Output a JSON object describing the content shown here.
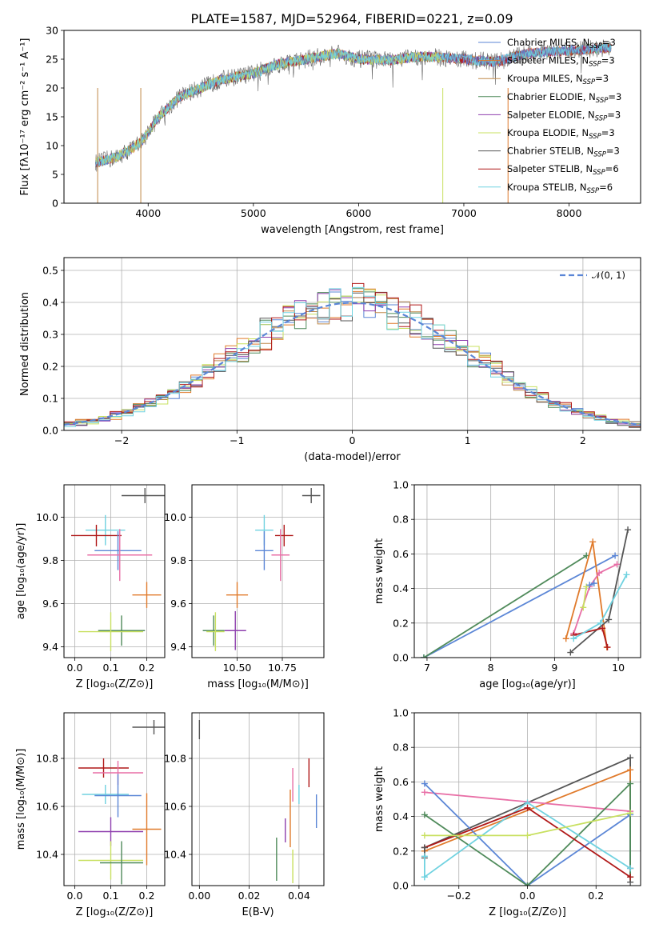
{
  "title": "PLATE=1587, MJD=52964, FIBERID=0221, z=0.09",
  "colors": {
    "chab_miles": "#5b86d6",
    "salp_miles": "#e07a2b",
    "krou_miles": "#c08a4a",
    "chab_elodie": "#4f8a5a",
    "salp_elodie": "#8e3fae",
    "krou_elodie": "#c8e060",
    "chab_stelib": "#555555",
    "salp_stelib": "#b01818",
    "krou_stelib": "#70d2e0",
    "pink": "#e86fa6",
    "normal": "#5b86d6"
  },
  "chart_data": [
    {
      "id": "spectrum",
      "type": "line",
      "xlabel": "wavelength [Angstrom, rest frame]",
      "ylabel": "Flux [fλ10⁻¹⁷ erg cm⁻² s⁻¹ A⁻¹]",
      "xlim": [
        3200,
        8680
      ],
      "ylim": [
        0,
        30
      ],
      "xticks": [
        "4000",
        "5000",
        "6000",
        "7000",
        "8000"
      ],
      "yticks": [
        "0",
        "5",
        "10",
        "15",
        "20",
        "25",
        "30"
      ],
      "legend_position": "top-right",
      "legend": [
        {
          "label": "Chabrier MILES, N",
          "sub": "SSP",
          "suffix": "=3",
          "color_key": "chab_miles"
        },
        {
          "label": "Salpeter MILES, N",
          "sub": "SSP",
          "suffix": "=3",
          "color_key": "salp_miles"
        },
        {
          "label": "Kroupa MILES, N",
          "sub": "SSP",
          "suffix": "=3",
          "color_key": "krou_miles"
        },
        {
          "label": "Chabrier ELODIE, N",
          "sub": "SSP",
          "suffix": "=3",
          "color_key": "chab_elodie"
        },
        {
          "label": "Salpeter ELODIE, N",
          "sub": "SSP",
          "suffix": "=3",
          "color_key": "salp_elodie"
        },
        {
          "label": "Kroupa ELODIE, N",
          "sub": "SSP",
          "suffix": "=3",
          "color_key": "krou_elodie"
        },
        {
          "label": "Chabrier STELIB, N",
          "sub": "SSP",
          "suffix": "=3",
          "color_key": "chab_stelib"
        },
        {
          "label": "Salpeter STELIB, N",
          "sub": "SSP",
          "suffix": "=6",
          "color_key": "salp_stelib"
        },
        {
          "label": "Kroupa STELIB, N",
          "sub": "SSP",
          "suffix": "=6",
          "color_key": "krou_stelib"
        }
      ],
      "data_range_A": [
        3500,
        8400
      ],
      "continuum": [
        [
          3500,
          7
        ],
        [
          3700,
          8
        ],
        [
          3850,
          9.5
        ],
        [
          3950,
          11
        ],
        [
          4100,
          15
        ],
        [
          4300,
          18.5
        ],
        [
          4500,
          20
        ],
        [
          4700,
          21.5
        ],
        [
          5000,
          22.5
        ],
        [
          5200,
          24
        ],
        [
          5500,
          25
        ],
        [
          5800,
          26
        ],
        [
          6000,
          25
        ],
        [
          6300,
          24.8
        ],
        [
          6600,
          25.5
        ],
        [
          7000,
          25
        ],
        [
          7300,
          24.5
        ],
        [
          7600,
          26
        ],
        [
          8000,
          26.5
        ],
        [
          8400,
          27
        ]
      ],
      "drops": [
        [
          3520,
          0
        ],
        [
          3930,
          0
        ],
        [
          6800,
          0
        ],
        [
          7420,
          0
        ]
      ],
      "segment_ends": {
        "krou_elodie_end": 6790,
        "salp_miles_end": 7420
      }
    },
    {
      "id": "residuals",
      "type": "area",
      "xlabel": "(data-model)/error",
      "ylabel": "Normed distribution",
      "xlim": [
        -2.5,
        2.5
      ],
      "ylim": [
        0,
        0.54
      ],
      "xticks": [
        "−2",
        "−1",
        "0",
        "1",
        "2"
      ],
      "xtickvals": [
        -2,
        -1,
        0,
        1,
        2
      ],
      "yticks": [
        "0.0",
        "0.1",
        "0.2",
        "0.3",
        "0.4",
        "0.5"
      ],
      "legend_position": "top-right",
      "legend": [
        {
          "label": "𝒩(0, 1)",
          "color_key": "normal"
        }
      ],
      "bin_width": 0.1,
      "gauss_peak": 0.399
    },
    {
      "id": "age-vs-Z",
      "type": "scatter",
      "xlabel": "Z [log₁₀(Z/Z⊙)]",
      "ylabel": "age  [log₁₀(age/yr)]",
      "xlim": [
        -0.03,
        0.25
      ],
      "ylim": [
        9.35,
        10.15
      ],
      "xticks": [
        "0.0",
        "0.1",
        "0.2"
      ],
      "xtickvals": [
        0,
        0.1,
        0.2
      ],
      "yticks": [
        "9.4",
        "9.6",
        "9.8",
        "10.0"
      ],
      "ytickvals": [
        9.4,
        9.6,
        9.8,
        10.0
      ],
      "points": [
        {
          "x": 0.195,
          "y": 10.1,
          "ex": 0.065,
          "ey": 0.035,
          "c": "chab_stelib"
        },
        {
          "x": 0.085,
          "y": 9.94,
          "ex": 0.055,
          "ey": 0.07,
          "c": "krou_stelib"
        },
        {
          "x": 0.06,
          "y": 9.915,
          "ex": 0.07,
          "ey": 0.05,
          "c": "salp_stelib"
        },
        {
          "x": 0.12,
          "y": 9.845,
          "ex": 0.065,
          "ey": 0.09,
          "c": "chab_miles"
        },
        {
          "x": 0.125,
          "y": 9.825,
          "ex": 0.09,
          "ey": 0.12,
          "c": "pink"
        },
        {
          "x": 0.2,
          "y": 9.64,
          "ex": 0.04,
          "ey": 0.06,
          "c": "salp_miles"
        },
        {
          "x": 0.13,
          "y": 9.475,
          "ex": 0.065,
          "ey": 0.07,
          "c": "chab_elodie"
        },
        {
          "x": 0.1,
          "y": 9.47,
          "ex": 0.09,
          "ey": 0.09,
          "c": "krou_elodie"
        }
      ]
    },
    {
      "id": "age-vs-mass",
      "type": "scatter",
      "xlabel": "mass [log₁₀(M/M⊙)]",
      "ylabel": "",
      "xlim": [
        10.25,
        10.98
      ],
      "ylim": [
        9.35,
        10.15
      ],
      "xticks": [
        "10.50",
        "10.75"
      ],
      "xtickvals": [
        10.5,
        10.75
      ],
      "yticks": [
        "9.4",
        "9.6",
        "9.8",
        "10.0"
      ],
      "ytickvals": [
        9.4,
        9.6,
        9.8,
        10.0
      ],
      "points": [
        {
          "x": 10.91,
          "y": 10.1,
          "ex": 0.05,
          "ey": 0.035,
          "c": "chab_stelib"
        },
        {
          "x": 10.65,
          "y": 9.94,
          "ex": 0.05,
          "ey": 0.07,
          "c": "krou_stelib"
        },
        {
          "x": 10.76,
          "y": 9.915,
          "ex": 0.05,
          "ey": 0.05,
          "c": "salp_stelib"
        },
        {
          "x": 10.65,
          "y": 9.845,
          "ex": 0.05,
          "ey": 0.09,
          "c": "chab_miles"
        },
        {
          "x": 10.74,
          "y": 9.825,
          "ex": 0.05,
          "ey": 0.12,
          "c": "pink"
        },
        {
          "x": 10.5,
          "y": 9.64,
          "ex": 0.06,
          "ey": 0.06,
          "c": "salp_miles"
        },
        {
          "x": 10.49,
          "y": 9.475,
          "ex": 0.06,
          "ey": 0.09,
          "c": "salp_elodie"
        },
        {
          "x": 10.37,
          "y": 9.475,
          "ex": 0.06,
          "ey": 0.07,
          "c": "chab_elodie"
        },
        {
          "x": 10.38,
          "y": 9.47,
          "ex": 0.05,
          "ey": 0.09,
          "c": "krou_elodie"
        }
      ]
    },
    {
      "id": "weight-vs-age",
      "type": "line",
      "xlabel": "age  [log₁₀(age/yr)]",
      "ylabel": "mass weight",
      "xlim": [
        6.8,
        10.35
      ],
      "ylim": [
        0,
        1
      ],
      "xticks": [
        "7",
        "8",
        "9",
        "10"
      ],
      "xtickvals": [
        7,
        8,
        9,
        10
      ],
      "yticks": [
        "0.0",
        "0.2",
        "0.4",
        "0.6",
        "0.8",
        "1.0"
      ],
      "ytickvals": [
        0,
        0.2,
        0.4,
        0.6,
        0.8,
        1.0
      ],
      "series": [
        {
          "c": "chab_miles",
          "pts": [
            [
              6.95,
              0
            ],
            [
              9.95,
              0.59
            ]
          ]
        },
        {
          "c": "chab_elodie",
          "pts": [
            [
              6.95,
              0
            ],
            [
              9.5,
              0.59
            ]
          ]
        },
        {
          "c": "salp_miles",
          "pts": [
            [
              9.18,
              0.11
            ],
            [
              9.6,
              0.67
            ],
            [
              9.82,
              0.06
            ]
          ]
        },
        {
          "c": "pink",
          "pts": [
            [
              9.3,
              0.14
            ],
            [
              9.55,
              0.41
            ],
            [
              9.7,
              0.49
            ],
            [
              9.98,
              0.54
            ]
          ]
        },
        {
          "c": "chab_stelib",
          "pts": [
            [
              9.25,
              0.03
            ],
            [
              9.85,
              0.22
            ],
            [
              10.15,
              0.74
            ]
          ]
        },
        {
          "c": "salp_stelib",
          "pts": [
            [
              9.3,
              0.13
            ],
            [
              9.75,
              0.17
            ],
            [
              9.83,
              0.06
            ]
          ]
        },
        {
          "c": "krou_stelib",
          "pts": [
            [
              9.3,
              0.11
            ],
            [
              9.72,
              0.2
            ],
            [
              10.13,
              0.48
            ]
          ]
        },
        {
          "c": "krou_elodie",
          "pts": [
            [
              9.45,
              0.29
            ],
            [
              9.5,
              0.41
            ]
          ]
        },
        {
          "c": "chab_miles",
          "pts": [
            [
              9.55,
              0.42
            ],
            [
              9.62,
              0.43
            ]
          ]
        }
      ]
    },
    {
      "id": "mass-vs-Z",
      "type": "scatter",
      "xlabel": "Z [log₁₀(Z/Z⊙)]",
      "ylabel": "mass [log₁₀(M/M⊙)]",
      "xlim": [
        -0.03,
        0.25
      ],
      "ylim": [
        10.27,
        10.99
      ],
      "xticks": [
        "0.0",
        "0.1",
        "0.2"
      ],
      "xtickvals": [
        0,
        0.1,
        0.2
      ],
      "yticks": [
        "10.4",
        "10.6",
        "10.8"
      ],
      "ytickvals": [
        10.4,
        10.6,
        10.8
      ],
      "points": [
        {
          "x": 0.22,
          "y": 10.93,
          "ex": 0.06,
          "ey": 0.03,
          "c": "chab_stelib"
        },
        {
          "x": 0.08,
          "y": 10.76,
          "ex": 0.07,
          "ey": 0.04,
          "c": "salp_stelib"
        },
        {
          "x": 0.12,
          "y": 10.74,
          "ex": 0.07,
          "ey": 0.05,
          "c": "pink"
        },
        {
          "x": 0.085,
          "y": 10.65,
          "ex": 0.065,
          "ey": 0.04,
          "c": "krou_stelib"
        },
        {
          "x": 0.12,
          "y": 10.645,
          "ex": 0.065,
          "ey": 0.09,
          "c": "chab_miles"
        },
        {
          "x": 0.2,
          "y": 10.505,
          "ex": 0.04,
          "ey": 0.15,
          "c": "salp_miles"
        },
        {
          "x": 0.1,
          "y": 10.495,
          "ex": 0.09,
          "ey": 0.06,
          "c": "salp_elodie"
        },
        {
          "x": 0.1,
          "y": 10.375,
          "ex": 0.09,
          "ey": 0.08,
          "c": "krou_elodie"
        },
        {
          "x": 0.13,
          "y": 10.365,
          "ex": 0.06,
          "ey": 0.09,
          "c": "chab_elodie"
        }
      ]
    },
    {
      "id": "mass-vs-ebv",
      "type": "scatter",
      "xlabel": "E(B-V)",
      "ylabel": "",
      "xlim": [
        -0.003,
        0.05
      ],
      "ylim": [
        10.27,
        10.99
      ],
      "xticks": [
        "0.00",
        "0.02",
        "0.04"
      ],
      "xtickvals": [
        0,
        0.02,
        0.04
      ],
      "yticks": [
        "10.4",
        "10.6",
        "10.8"
      ],
      "ytickvals": [
        10.4,
        10.6,
        10.8
      ],
      "points": [
        {
          "x": 0.0,
          "y": 10.92,
          "ex": 0,
          "ey": 0.04,
          "c": "chab_stelib"
        },
        {
          "x": 0.047,
          "y": 10.58,
          "ex": 0,
          "ey": 0.07,
          "c": "chab_miles"
        },
        {
          "x": 0.044,
          "y": 10.74,
          "ex": 0,
          "ey": 0.06,
          "c": "salp_stelib"
        },
        {
          "x": 0.04,
          "y": 10.65,
          "ex": 0,
          "ey": 0.04,
          "c": "krou_stelib"
        },
        {
          "x": 0.0375,
          "y": 10.69,
          "ex": 0,
          "ey": 0.07,
          "c": "pink"
        },
        {
          "x": 0.0365,
          "y": 10.55,
          "ex": 0,
          "ey": 0.12,
          "c": "salp_miles"
        },
        {
          "x": 0.0345,
          "y": 10.5,
          "ex": 0,
          "ey": 0.05,
          "c": "salp_elodie"
        },
        {
          "x": 0.031,
          "y": 10.38,
          "ex": 0,
          "ey": 0.09,
          "c": "chab_elodie"
        },
        {
          "x": 0.0375,
          "y": 10.35,
          "ex": 0,
          "ey": 0.07,
          "c": "krou_elodie"
        }
      ]
    },
    {
      "id": "weight-vs-Z",
      "type": "line",
      "xlabel": "Z [log₁₀(Z/Z⊙)]",
      "ylabel": "mass weight",
      "xlim": [
        -0.33,
        0.33
      ],
      "ylim": [
        0,
        1
      ],
      "xticks": [
        "−0.2",
        "0.0",
        "0.2"
      ],
      "xtickvals": [
        -0.2,
        0,
        0.2
      ],
      "yticks": [
        "0.0",
        "0.2",
        "0.4",
        "0.6",
        "0.8",
        "1.0"
      ],
      "ytickvals": [
        0,
        0.2,
        0.4,
        0.6,
        0.8,
        1.0
      ],
      "series": [
        {
          "c": "chab_stelib",
          "pts": [
            [
              -0.3,
              0.22
            ],
            [
              0.3,
              0.74
            ],
            [
              0.3,
              0.02
            ]
          ]
        },
        {
          "c": "salp_miles",
          "pts": [
            [
              -0.3,
              0.2
            ],
            [
              0.3,
              0.67
            ],
            [
              0.3,
              0.1
            ]
          ]
        },
        {
          "c": "pink",
          "pts": [
            [
              -0.3,
              0.54
            ],
            [
              0.3,
              0.43
            ]
          ]
        },
        {
          "c": "chab_miles",
          "pts": [
            [
              -0.3,
              0.59
            ],
            [
              0,
              0
            ],
            [
              0.3,
              0.41
            ],
            [
              0.3,
              0.1
            ]
          ]
        },
        {
          "c": "chab_elodie",
          "pts": [
            [
              -0.3,
              0.41
            ],
            [
              0,
              0
            ],
            [
              0.3,
              0.59
            ],
            [
              0.3,
              0.05
            ]
          ]
        },
        {
          "c": "krou_stelib",
          "pts": [
            [
              -0.3,
              0.05
            ],
            [
              0,
              0.48
            ],
            [
              0.3,
              0.1
            ]
          ]
        },
        {
          "c": "salp_stelib",
          "pts": [
            [
              -0.3,
              0.22
            ],
            [
              0,
              0.45
            ],
            [
              0.3,
              0.05
            ]
          ]
        },
        {
          "c": "krou_elodie",
          "pts": [
            [
              -0.3,
              0.29
            ],
            [
              0,
              0.29
            ],
            [
              0.3,
              0.42
            ]
          ]
        },
        {
          "c": "chab_stelib",
          "pts": [
            [
              -0.3,
              0.16
            ],
            [
              -0.3,
              0.22
            ]
          ]
        },
        {
          "c": "krou_stelib",
          "pts": [
            [
              -0.3,
              0.05
            ],
            [
              -0.3,
              0.17
            ]
          ]
        }
      ]
    }
  ]
}
